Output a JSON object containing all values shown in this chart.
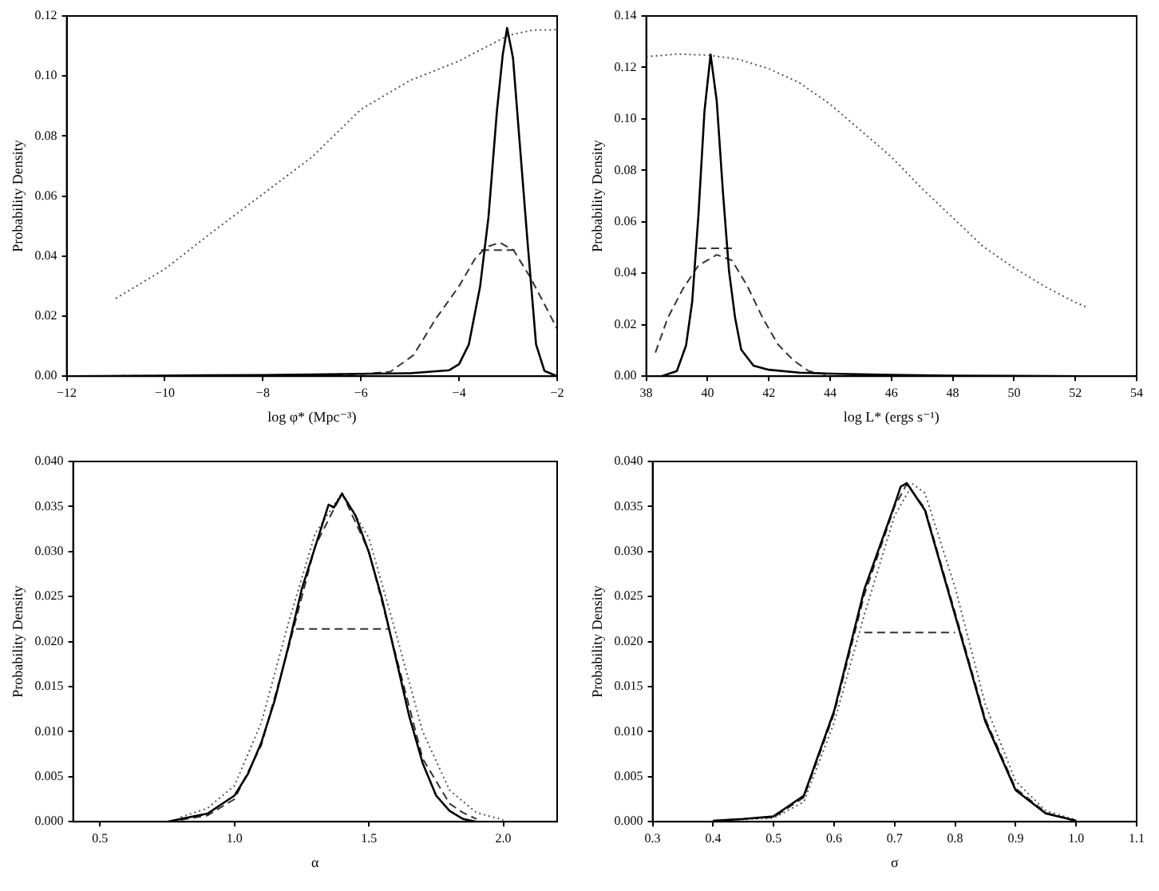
{
  "chart_data": [
    {
      "type": "line",
      "xlabel": "log φ* (Mpc⁻³)",
      "ylabel": "Probability Density",
      "xlim": [
        -12,
        -2
      ],
      "ylim": [
        0,
        0.12
      ],
      "xticks": [
        {
          "value": -12,
          "label": "−12"
        },
        {
          "value": -10,
          "label": "−10"
        },
        {
          "value": -8,
          "label": "−8"
        },
        {
          "value": -6,
          "label": "−6"
        },
        {
          "value": -4,
          "label": "−4"
        },
        {
          "value": -2,
          "label": "−2"
        }
      ],
      "yticks": [
        {
          "value": 0,
          "label": "0.00"
        },
        {
          "value": 0.02,
          "label": "0.02"
        },
        {
          "value": 0.04,
          "label": "0.04"
        },
        {
          "value": 0.06,
          "label": "0.06"
        },
        {
          "value": 0.08,
          "label": "0.08"
        },
        {
          "value": 0.1,
          "label": "0.10"
        },
        {
          "value": 0.12,
          "label": "0.12"
        }
      ],
      "grid": false,
      "legend": false,
      "marker": "none",
      "series": [
        {
          "color": "#000000",
          "line_style": "solid",
          "x": [
            -12,
            -10,
            -8,
            -6,
            -5,
            -4.2,
            -4,
            -3.8,
            -3.57,
            -3.4,
            -3.23,
            -3.11,
            -3.02,
            -2.9,
            -2.77,
            -2.6,
            -2.43,
            -2.26,
            -2
          ],
          "values": [
            0,
            0.0002,
            0.0004,
            0.0008,
            0.001,
            0.002,
            0.004,
            0.0106,
            0.03,
            0.053,
            0.088,
            0.107,
            0.116,
            0.106,
            0.079,
            0.044,
            0.0106,
            0.0018,
            0
          ]
        },
        {
          "color": "#333333",
          "line_style": "dashed",
          "x": [
            -12,
            -8,
            -6,
            -5.4,
            -4.93,
            -4.48,
            -4,
            -3.68,
            -3.45,
            -3.17,
            -2.89,
            -2.55,
            -2.26,
            -2
          ],
          "values": [
            0,
            0.0003,
            0.0007,
            0.0015,
            0.007,
            0.019,
            0.03,
            0.039,
            0.043,
            0.0445,
            0.042,
            0.033,
            0.024,
            0.0158
          ]
        },
        {
          "color": "#555555",
          "line_style": "dotted",
          "x": [
            -11,
            -10,
            -9,
            -8,
            -7,
            -6,
            -5,
            -4,
            -3,
            -2.5,
            -2
          ],
          "values": [
            0.0259,
            0.0357,
            0.0484,
            0.0607,
            0.073,
            0.0889,
            0.0985,
            0.105,
            0.1135,
            0.1153,
            0.1154
          ]
        },
        {
          "color": "#333333",
          "line_style": "dashed",
          "x": [
            -3.55,
            -2.77
          ],
          "values": [
            0.042,
            0.042
          ]
        }
      ]
    },
    {
      "type": "line",
      "xlabel": "log L* (ergs s⁻¹)",
      "ylabel": "Probability Density",
      "xlim": [
        38,
        54
      ],
      "ylim": [
        0,
        0.14
      ],
      "xticks": [
        38,
        40,
        42,
        44,
        46,
        48,
        50,
        52,
        54
      ],
      "yticks": [
        {
          "value": 0,
          "label": "0.00"
        },
        {
          "value": 0.02,
          "label": "0.02"
        },
        {
          "value": 0.04,
          "label": "0.04"
        },
        {
          "value": 0.06,
          "label": "0.06"
        },
        {
          "value": 0.08,
          "label": "0.08"
        },
        {
          "value": 0.1,
          "label": "0.10"
        },
        {
          "value": 0.12,
          "label": "0.12"
        },
        {
          "value": 0.14,
          "label": "0.14"
        }
      ],
      "grid": false,
      "legend": false,
      "marker": "none",
      "series": [
        {
          "color": "#000000",
          "line_style": "solid",
          "x": [
            38.5,
            39,
            39.3,
            39.5,
            39.7,
            39.9,
            40.1,
            40.3,
            40.5,
            40.7,
            40.9,
            41.1,
            41.5,
            42,
            43,
            44,
            46,
            48,
            50,
            52.4
          ],
          "values": [
            0,
            0.002,
            0.012,
            0.029,
            0.062,
            0.103,
            0.125,
            0.107,
            0.072,
            0.041,
            0.0226,
            0.0103,
            0.0041,
            0.0025,
            0.0014,
            0.001,
            0.0005,
            0.0002,
            0.0001,
            0
          ]
        },
        {
          "color": "#333333",
          "line_style": "dashed",
          "x": [
            38.3,
            38.7,
            39.2,
            39.7,
            40.3,
            40.8,
            41.3,
            41.8,
            42.3,
            42.8,
            43.3,
            44
          ],
          "values": [
            0.0092,
            0.0226,
            0.034,
            0.043,
            0.0472,
            0.045,
            0.035,
            0.0226,
            0.0123,
            0.0062,
            0.002,
            0.0003
          ]
        },
        {
          "color": "#555555",
          "line_style": "dotted",
          "x": [
            38,
            39,
            40,
            41,
            42,
            43,
            44,
            45,
            46,
            47,
            48,
            49,
            50,
            51,
            52,
            52.4
          ],
          "values": [
            0.1242,
            0.1252,
            0.1248,
            0.1232,
            0.1195,
            0.114,
            0.1057,
            0.0955,
            0.0852,
            0.0729,
            0.0616,
            0.0503,
            0.0421,
            0.0349,
            0.0287,
            0.0267
          ]
        },
        {
          "color": "#333333",
          "line_style": "dashed",
          "x": [
            39.7,
            40.8
          ],
          "values": [
            0.0497,
            0.0497
          ]
        }
      ]
    },
    {
      "type": "line",
      "xlabel": "α",
      "ylabel": "Probability Density",
      "xlim": [
        0.4,
        2.2
      ],
      "ylim": [
        0,
        0.04
      ],
      "xticks": [
        {
          "value": 0.5,
          "label": "0.5"
        },
        {
          "value": 1,
          "label": "1.0"
        },
        {
          "value": 1.5,
          "label": "1.5"
        },
        {
          "value": 2,
          "label": "2.0"
        }
      ],
      "yticks": [
        {
          "value": 0,
          "label": "0.000"
        },
        {
          "value": 0.005,
          "label": "0.005"
        },
        {
          "value": 0.01,
          "label": "0.010"
        },
        {
          "value": 0.015,
          "label": "0.015"
        },
        {
          "value": 0.02,
          "label": "0.020"
        },
        {
          "value": 0.025,
          "label": "0.025"
        },
        {
          "value": 0.03,
          "label": "0.030"
        },
        {
          "value": 0.035,
          "label": "0.035"
        },
        {
          "value": 0.04,
          "label": "0.040"
        }
      ],
      "grid": false,
      "legend": false,
      "marker": "none",
      "series": [
        {
          "color": "#000000",
          "line_style": "solid",
          "x": [
            0.5,
            0.75,
            0.8,
            0.9,
            1,
            1.05,
            1.1,
            1.15,
            1.2,
            1.25,
            1.3,
            1.35,
            1.37,
            1.4,
            1.45,
            1.5,
            1.55,
            1.6,
            1.65,
            1.7,
            1.75,
            1.8,
            1.85,
            1.9
          ],
          "values": [
            0,
            0,
            0.0003,
            0.0009,
            0.0029,
            0.0053,
            0.0088,
            0.0135,
            0.0194,
            0.0258,
            0.0305,
            0.0352,
            0.0349,
            0.0364,
            0.034,
            0.0299,
            0.0246,
            0.0182,
            0.0117,
            0.0065,
            0.0029,
            0.0012,
            0.0003,
            0
          ]
        },
        {
          "color": "#333333",
          "line_style": "dashed",
          "x": [
            0.8,
            0.9,
            1,
            1.1,
            1.2,
            1.3,
            1.4,
            1.5,
            1.6,
            1.7,
            1.8,
            1.85,
            1.9
          ],
          "values": [
            0.0002,
            0.0007,
            0.0025,
            0.0085,
            0.0192,
            0.0306,
            0.0365,
            0.03,
            0.0185,
            0.007,
            0.002,
            0.001,
            0.0003
          ]
        },
        {
          "color": "#555555",
          "line_style": "dotted",
          "x": [
            0.8,
            0.9,
            1,
            1.1,
            1.2,
            1.3,
            1.4,
            1.5,
            1.6,
            1.7,
            1.8,
            1.9,
            2
          ],
          "values": [
            0.0005,
            0.0015,
            0.004,
            0.011,
            0.022,
            0.032,
            0.0365,
            0.0315,
            0.021,
            0.01,
            0.0035,
            0.001,
            0.0002
          ]
        },
        {
          "color": "#333333",
          "line_style": "dashed",
          "x": [
            1.23,
            1.57
          ],
          "values": [
            0.0214,
            0.0214
          ]
        }
      ]
    },
    {
      "type": "line",
      "xlabel": "σ",
      "ylabel": "Probability Density",
      "xlim": [
        0.3,
        1.1
      ],
      "ylim": [
        0,
        0.04
      ],
      "xticks": [
        {
          "value": 0.3,
          "label": "0.3"
        },
        {
          "value": 0.4,
          "label": "0.4"
        },
        {
          "value": 0.5,
          "label": "0.5"
        },
        {
          "value": 0.6,
          "label": "0.6"
        },
        {
          "value": 0.7,
          "label": "0.7"
        },
        {
          "value": 0.8,
          "label": "0.8"
        },
        {
          "value": 0.9,
          "label": "0.9"
        },
        {
          "value": 1,
          "label": "1.0"
        },
        {
          "value": 1.1,
          "label": "1.1"
        }
      ],
      "yticks": [
        {
          "value": 0,
          "label": "0.000"
        },
        {
          "value": 0.005,
          "label": "0.005"
        },
        {
          "value": 0.01,
          "label": "0.010"
        },
        {
          "value": 0.015,
          "label": "0.015"
        },
        {
          "value": 0.02,
          "label": "0.020"
        },
        {
          "value": 0.025,
          "label": "0.025"
        },
        {
          "value": 0.03,
          "label": "0.030"
        },
        {
          "value": 0.035,
          "label": "0.035"
        },
        {
          "value": 0.04,
          "label": "0.040"
        }
      ],
      "grid": false,
      "legend": false,
      "marker": "none",
      "series": [
        {
          "color": "#000000",
          "line_style": "solid",
          "x": [
            0.4,
            0.45,
            0.5,
            0.55,
            0.6,
            0.65,
            0.7,
            0.71,
            0.72,
            0.75,
            0.8,
            0.85,
            0.9,
            0.95,
            1
          ],
          "values": [
            0.0001,
            0.0003,
            0.0006,
            0.0029,
            0.0123,
            0.0258,
            0.0352,
            0.0372,
            0.0376,
            0.0346,
            0.0229,
            0.0111,
            0.0035,
            0.0009,
            0.0001
          ]
        },
        {
          "color": "#333333",
          "line_style": "dashed",
          "x": [
            0.4,
            0.5,
            0.55,
            0.6,
            0.65,
            0.7,
            0.72,
            0.75,
            0.8,
            0.85,
            0.9,
            0.95,
            1
          ],
          "values": [
            0.0001,
            0.0005,
            0.0027,
            0.012,
            0.0252,
            0.035,
            0.0375,
            0.0348,
            0.0232,
            0.0114,
            0.0037,
            0.001,
            0.0001
          ]
        },
        {
          "color": "#555555",
          "line_style": "dotted",
          "x": [
            0.4,
            0.5,
            0.55,
            0.6,
            0.65,
            0.7,
            0.73,
            0.75,
            0.8,
            0.85,
            0.9,
            0.95,
            1
          ],
          "values": [
            0.0001,
            0.0004,
            0.0022,
            0.011,
            0.023,
            0.034,
            0.0375,
            0.0365,
            0.026,
            0.013,
            0.0045,
            0.0012,
            0.0002
          ]
        },
        {
          "color": "#333333",
          "line_style": "dashed",
          "x": [
            0.65,
            0.8
          ],
          "values": [
            0.021,
            0.021
          ]
        }
      ]
    }
  ]
}
